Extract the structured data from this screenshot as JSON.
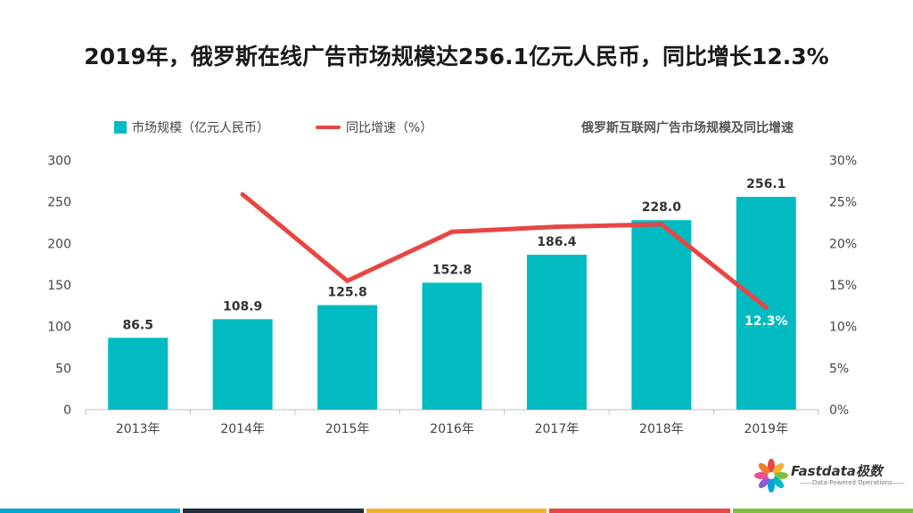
{
  "page": {
    "title": "2019年，俄罗斯在线广告市场规模达256.1亿元人民币，同比增长12.3%"
  },
  "chart_data": {
    "type": "bar",
    "title": "俄罗斯互联网广告市场规模及同比增速",
    "categories": [
      "2013年",
      "2014年",
      "2015年",
      "2016年",
      "2017年",
      "2018年",
      "2019年"
    ],
    "series": [
      {
        "name": "市场规模（亿元人民币）",
        "kind": "bar",
        "axis": "left",
        "color": "#00BCC2",
        "values": [
          86.5,
          108.9,
          125.8,
          152.8,
          186.4,
          228.0,
          256.1
        ],
        "labels": [
          "86.5",
          "108.9",
          "125.8",
          "152.8",
          "186.4",
          "228.0",
          "256.1"
        ]
      },
      {
        "name": "同比增速（%）",
        "kind": "line",
        "axis": "right",
        "color": "#E84545",
        "values": [
          null,
          25.9,
          15.5,
          21.4,
          22.0,
          22.3,
          12.3
        ],
        "labels": [
          "",
          "",
          "",
          "",
          "",
          "",
          "12.3%"
        ]
      }
    ],
    "y_left": {
      "min": 0,
      "max": 300,
      "ticks": [
        "0",
        "50",
        "100",
        "150",
        "200",
        "250",
        "300"
      ]
    },
    "y_right": {
      "min": 0,
      "max": 30,
      "ticks": [
        "0%",
        "5%",
        "10%",
        "15%",
        "20%",
        "25%",
        "30%"
      ]
    },
    "grid": false,
    "legend_position": "top-left"
  },
  "brand": {
    "name": "Fastdata极数",
    "tagline": "——Data-Powered Operations——"
  },
  "footer": {
    "colors": [
      "#00A6D6",
      "#1F2D3D",
      "#F2B233",
      "#E84545",
      "#7FBF3F"
    ]
  }
}
